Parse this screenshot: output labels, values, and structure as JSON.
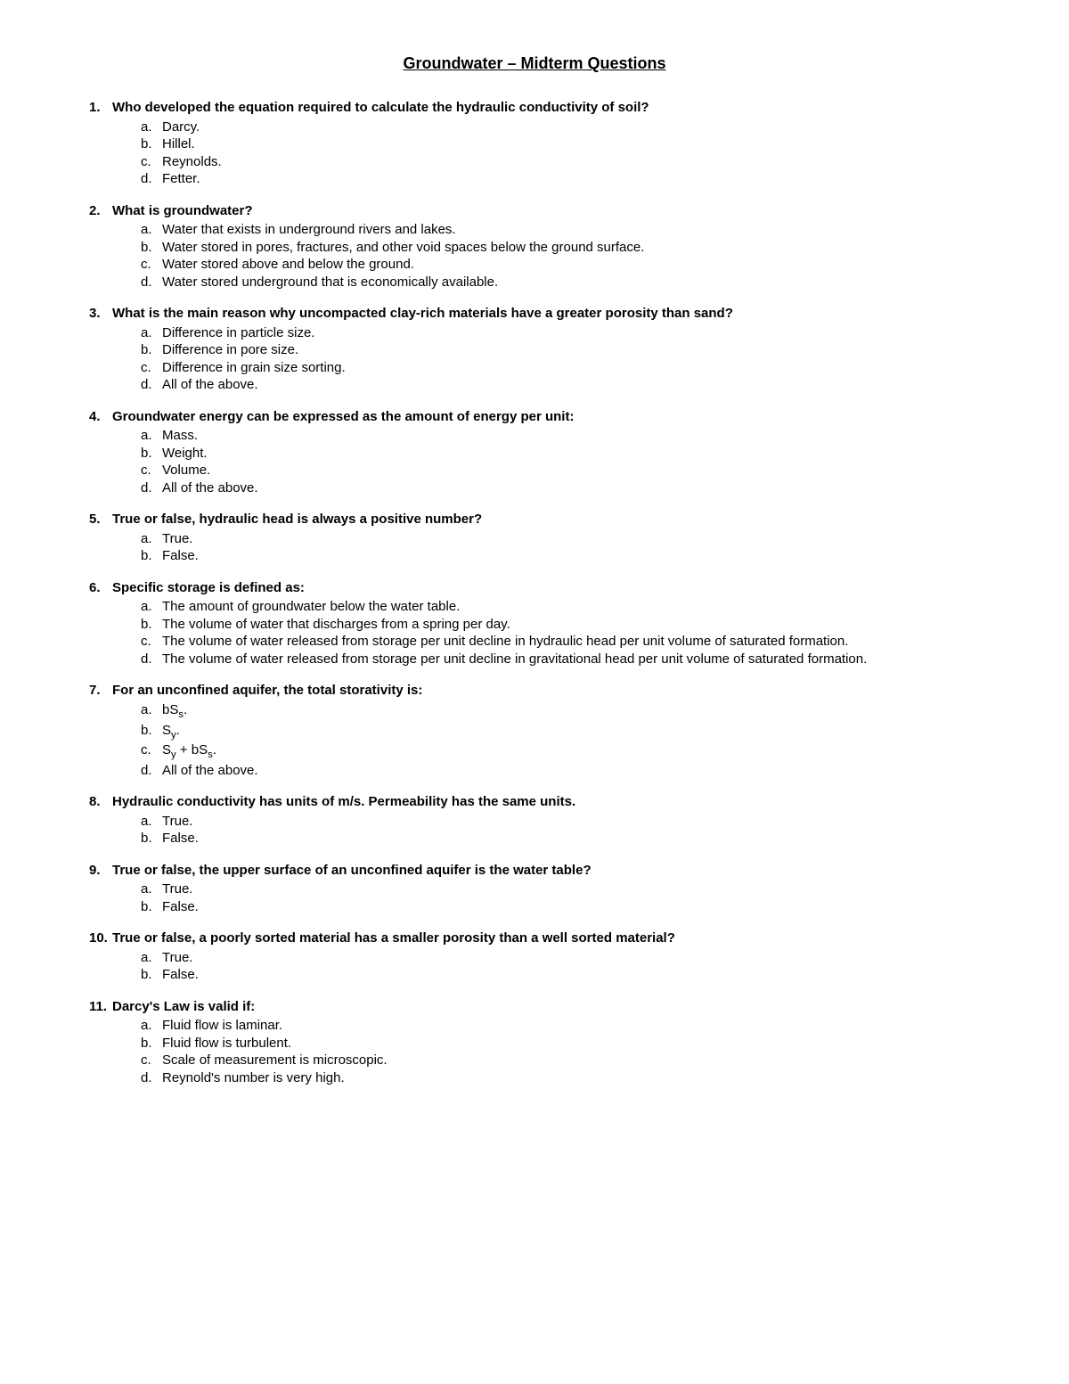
{
  "title": "Groundwater – Midterm Questions",
  "questions": [
    {
      "num": "1.",
      "text": "Who developed the equation required to calculate the hydraulic conductivity of soil?",
      "opts": [
        {
          "l": "a.",
          "t": "Darcy."
        },
        {
          "l": "b.",
          "t": "Hillel."
        },
        {
          "l": "c.",
          "t": "Reynolds."
        },
        {
          "l": "d.",
          "t": "Fetter."
        }
      ]
    },
    {
      "num": "2.",
      "text": "What is groundwater?",
      "opts": [
        {
          "l": "a.",
          "t": "Water that exists in underground rivers and lakes."
        },
        {
          "l": "b.",
          "t": "Water stored in pores, fractures, and other void spaces below the ground surface."
        },
        {
          "l": "c.",
          "t": "Water stored above and below the ground."
        },
        {
          "l": "d.",
          "t": "Water stored underground that is economically available."
        }
      ]
    },
    {
      "num": "3.",
      "text": "What is the main reason why uncompacted clay-rich materials have a greater porosity than sand?",
      "opts": [
        {
          "l": "a.",
          "t": "Difference in particle size."
        },
        {
          "l": "b.",
          "t": "Difference in pore size."
        },
        {
          "l": "c.",
          "t": "Difference in grain size sorting."
        },
        {
          "l": "d.",
          "t": "All of the above."
        }
      ]
    },
    {
      "num": "4.",
      "text": "Groundwater energy can be expressed as the amount of energy per unit:",
      "opts": [
        {
          "l": "a.",
          "t": "Mass."
        },
        {
          "l": "b.",
          "t": "Weight."
        },
        {
          "l": "c.",
          "t": "Volume."
        },
        {
          "l": "d.",
          "t": "All of the above."
        }
      ]
    },
    {
      "num": "5.",
      "text": "True or false, hydraulic head is always a positive number?",
      "opts": [
        {
          "l": "a.",
          "t": "True."
        },
        {
          "l": "b.",
          "t": "False."
        }
      ]
    },
    {
      "num": "6.",
      "text": "Specific storage is defined as:",
      "opts": [
        {
          "l": "a.",
          "t": "The amount of groundwater below the water table."
        },
        {
          "l": "b.",
          "t": "The volume of water that discharges from a spring per day."
        },
        {
          "l": "c.",
          "t": "The volume of water released from storage per unit decline in hydraulic head per unit volume of saturated formation."
        },
        {
          "l": "d.",
          "t": "The volume of water released from storage per unit decline in gravitational head per unit volume of saturated formation."
        }
      ]
    },
    {
      "num": "7.",
      "text": "For an unconfined aquifer, the total storativity is:",
      "opts": [
        {
          "l": "a.",
          "html": "bS<sub>s</sub>."
        },
        {
          "l": "b.",
          "html": "S<sub>y</sub>."
        },
        {
          "l": "c.",
          "html": "S<sub>y</sub> + bS<sub>s</sub>."
        },
        {
          "l": "d.",
          "t": "All of the above."
        }
      ]
    },
    {
      "num": "8.",
      "text": "Hydraulic conductivity has units of m/s. Permeability has the same units.",
      "opts": [
        {
          "l": "a.",
          "t": "True."
        },
        {
          "l": "b.",
          "t": "False."
        }
      ]
    },
    {
      "num": "9.",
      "text": "True or false, the upper surface of an unconfined aquifer is the water table?",
      "opts": [
        {
          "l": "a.",
          "t": "True."
        },
        {
          "l": "b.",
          "t": "False."
        }
      ]
    },
    {
      "num": "10.",
      "text": "True or false, a poorly sorted material has a smaller porosity than a well sorted material?",
      "opts": [
        {
          "l": "a.",
          "t": "True."
        },
        {
          "l": "b.",
          "t": "False."
        }
      ]
    },
    {
      "num": "11.",
      "text": "Darcy's Law is valid if:",
      "opts": [
        {
          "l": "a.",
          "t": "Fluid flow is laminar."
        },
        {
          "l": "b.",
          "t": "Fluid flow is turbulent."
        },
        {
          "l": "c.",
          "t": "Scale of measurement is microscopic."
        },
        {
          "l": "d.",
          "t": "Reynold's number is very high."
        }
      ]
    }
  ]
}
